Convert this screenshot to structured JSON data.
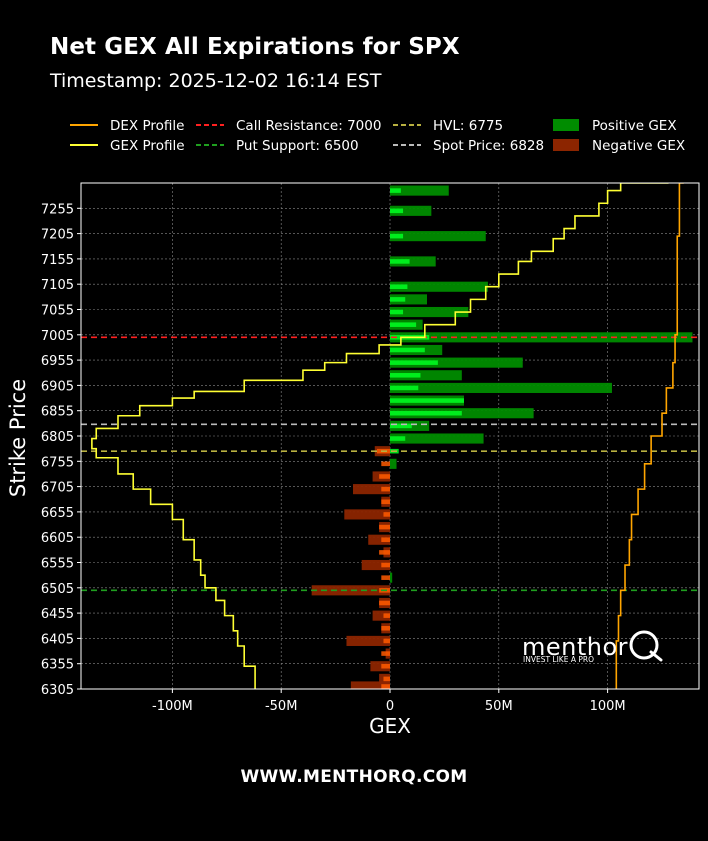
{
  "header": {
    "title": "Net GEX All Expirations for SPX",
    "subtitle": "Timestamp: 2025-12-02 16:14 EST"
  },
  "footer": {
    "text": "WWW.MENTHORQ.COM"
  },
  "watermark": {
    "brand": "menthor",
    "tagline": "INVEST LIKE A PRO"
  },
  "colors": {
    "background": "#000000",
    "dex": "#ffa500",
    "gex": "#ffff33",
    "call_resistance": "#ff2020",
    "put_support": "#1f9f1f",
    "hvl": "#b8b040",
    "spot": "#bbbbbb",
    "positive_expiry": "#00ff22",
    "positive_net": "#008c00",
    "negative_expiry": "#ff5a00",
    "negative_net": "#8c2500"
  },
  "legend": [
    {
      "label": "DEX Profile",
      "kind": "line",
      "style": "solid",
      "color": "#ffa500"
    },
    {
      "label": "GEX Profile",
      "kind": "line",
      "style": "solid",
      "color": "#ffff33"
    },
    {
      "label": "Call Resistance: 7000",
      "kind": "line",
      "style": "dashed",
      "color": "#ff2020"
    },
    {
      "label": "Put Support: 6500",
      "kind": "line",
      "style": "dashed",
      "color": "#1f9f1f"
    },
    {
      "label": "HVL: 6775",
      "kind": "line",
      "style": "dashed",
      "color": "#b8b040"
    },
    {
      "label": "Spot Price: 6828",
      "kind": "line",
      "style": "dashed",
      "color": "#bbbbbb"
    },
    {
      "label": "Positive GEX",
      "kind": "patch",
      "color": "#008c00"
    },
    {
      "label": "Negative GEX",
      "kind": "patch",
      "color": "#8c2500"
    }
  ],
  "chart_data": {
    "type": "bar",
    "orientation": "horizontal",
    "xlabel": "GEX",
    "ylabel": "Strike Price",
    "xlim": [
      -142,
      142
    ],
    "x_unit": "M",
    "ylim": [
      6305,
      7305
    ],
    "x_ticks": [
      -100,
      -50,
      0,
      50,
      100
    ],
    "x_tick_labels": [
      "-100M",
      "-50M",
      "0",
      "50M",
      "100M"
    ],
    "y_ticks": [
      6305,
      6355,
      6405,
      6455,
      6505,
      6555,
      6605,
      6655,
      6705,
      6755,
      6805,
      6855,
      6905,
      6955,
      7005,
      7055,
      7105,
      7155,
      7205,
      7255
    ],
    "grid": true,
    "levels": {
      "call_resistance": 7000,
      "put_support": 6500,
      "hvl": 6775,
      "spot_price": 6828
    },
    "net_gex_bars": [
      {
        "strike": 7290,
        "value": 27
      },
      {
        "strike": 7250,
        "value": 19
      },
      {
        "strike": 7200,
        "value": 44
      },
      {
        "strike": 7150,
        "value": 21
      },
      {
        "strike": 7100,
        "value": 45
      },
      {
        "strike": 7075,
        "value": 17
      },
      {
        "strike": 7050,
        "value": 36
      },
      {
        "strike": 7025,
        "value": 15
      },
      {
        "strike": 7000,
        "value": 139
      },
      {
        "strike": 6975,
        "value": 24
      },
      {
        "strike": 6950,
        "value": 61
      },
      {
        "strike": 6925,
        "value": 33
      },
      {
        "strike": 6900,
        "value": 102
      },
      {
        "strike": 6875,
        "value": 34
      },
      {
        "strike": 6850,
        "value": 66
      },
      {
        "strike": 6825,
        "value": 18
      },
      {
        "strike": 6800,
        "value": 43
      },
      {
        "strike": 6775,
        "value": -7
      },
      {
        "strike": 6750,
        "value": 3
      },
      {
        "strike": 6725,
        "value": -8
      },
      {
        "strike": 6700,
        "value": -17
      },
      {
        "strike": 6675,
        "value": -4
      },
      {
        "strike": 6650,
        "value": -21
      },
      {
        "strike": 6625,
        "value": -5
      },
      {
        "strike": 6600,
        "value": -10
      },
      {
        "strike": 6575,
        "value": -3
      },
      {
        "strike": 6550,
        "value": -13
      },
      {
        "strike": 6525,
        "value": 1
      },
      {
        "strike": 6500,
        "value": -36
      },
      {
        "strike": 6475,
        "value": -5
      },
      {
        "strike": 6450,
        "value": -8
      },
      {
        "strike": 6425,
        "value": -4
      },
      {
        "strike": 6400,
        "value": -20
      },
      {
        "strike": 6375,
        "value": -2
      },
      {
        "strike": 6350,
        "value": -9
      },
      {
        "strike": 6325,
        "value": -5
      },
      {
        "strike": 6310,
        "value": -18
      }
    ],
    "expiry_gex_bars": [
      {
        "strike": 7290,
        "value": 5
      },
      {
        "strike": 7250,
        "value": 6
      },
      {
        "strike": 7200,
        "value": 6
      },
      {
        "strike": 7150,
        "value": 9
      },
      {
        "strike": 7100,
        "value": 8
      },
      {
        "strike": 7075,
        "value": 7
      },
      {
        "strike": 7050,
        "value": 6
      },
      {
        "strike": 7025,
        "value": 12
      },
      {
        "strike": 7000,
        "value": 18
      },
      {
        "strike": 6975,
        "value": 16
      },
      {
        "strike": 6950,
        "value": 22
      },
      {
        "strike": 6925,
        "value": 14
      },
      {
        "strike": 6900,
        "value": 13
      },
      {
        "strike": 6875,
        "value": 34
      },
      {
        "strike": 6850,
        "value": 33
      },
      {
        "strike": 6825,
        "value": 10
      },
      {
        "strike": 6800,
        "value": 7
      },
      {
        "strike": 6775,
        "value": 4
      },
      {
        "strike": 6775,
        "value": -6
      },
      {
        "strike": 6750,
        "value": -4
      },
      {
        "strike": 6725,
        "value": -5
      },
      {
        "strike": 6700,
        "value": -4
      },
      {
        "strike": 6675,
        "value": -4
      },
      {
        "strike": 6650,
        "value": -3
      },
      {
        "strike": 6625,
        "value": -5
      },
      {
        "strike": 6600,
        "value": -4
      },
      {
        "strike": 6575,
        "value": -5
      },
      {
        "strike": 6550,
        "value": -4
      },
      {
        "strike": 6525,
        "value": -4
      },
      {
        "strike": 6500,
        "value": -5
      },
      {
        "strike": 6475,
        "value": -5
      },
      {
        "strike": 6450,
        "value": -3
      },
      {
        "strike": 6425,
        "value": -4
      },
      {
        "strike": 6400,
        "value": -3
      },
      {
        "strike": 6375,
        "value": -4
      },
      {
        "strike": 6350,
        "value": -4
      },
      {
        "strike": 6325,
        "value": -3
      },
      {
        "strike": 6310,
        "value": -4
      }
    ],
    "gex_profile": [
      {
        "strike": 7305,
        "gex": 128
      },
      {
        "strike": 7290,
        "gex": 106
      },
      {
        "strike": 7265,
        "gex": 100
      },
      {
        "strike": 7240,
        "gex": 96
      },
      {
        "strike": 7215,
        "gex": 85
      },
      {
        "strike": 7195,
        "gex": 80
      },
      {
        "strike": 7170,
        "gex": 75
      },
      {
        "strike": 7150,
        "gex": 65
      },
      {
        "strike": 7125,
        "gex": 59
      },
      {
        "strike": 7100,
        "gex": 50
      },
      {
        "strike": 7075,
        "gex": 44
      },
      {
        "strike": 7050,
        "gex": 37
      },
      {
        "strike": 7025,
        "gex": 30
      },
      {
        "strike": 7000,
        "gex": 16
      },
      {
        "strike": 6985,
        "gex": 5
      },
      {
        "strike": 6968,
        "gex": -5
      },
      {
        "strike": 6950,
        "gex": -20
      },
      {
        "strike": 6935,
        "gex": -30
      },
      {
        "strike": 6915,
        "gex": -40
      },
      {
        "strike": 6893,
        "gex": -67
      },
      {
        "strike": 6880,
        "gex": -90
      },
      {
        "strike": 6865,
        "gex": -100
      },
      {
        "strike": 6845,
        "gex": -115
      },
      {
        "strike": 6820,
        "gex": -125
      },
      {
        "strike": 6800,
        "gex": -135
      },
      {
        "strike": 6780,
        "gex": -137
      },
      {
        "strike": 6762,
        "gex": -135
      },
      {
        "strike": 6730,
        "gex": -125
      },
      {
        "strike": 6700,
        "gex": -118
      },
      {
        "strike": 6670,
        "gex": -110
      },
      {
        "strike": 6640,
        "gex": -100
      },
      {
        "strike": 6600,
        "gex": -95
      },
      {
        "strike": 6560,
        "gex": -90
      },
      {
        "strike": 6530,
        "gex": -87
      },
      {
        "strike": 6505,
        "gex": -85
      },
      {
        "strike": 6480,
        "gex": -80
      },
      {
        "strike": 6450,
        "gex": -76
      },
      {
        "strike": 6420,
        "gex": -72
      },
      {
        "strike": 6390,
        "gex": -70
      },
      {
        "strike": 6350,
        "gex": -67
      },
      {
        "strike": 6305,
        "gex": -62
      }
    ],
    "dex_profile": [
      {
        "strike": 7305,
        "dex": 135
      },
      {
        "strike": 7200,
        "dex": 133
      },
      {
        "strike": 7100,
        "dex": 132
      },
      {
        "strike": 7005,
        "dex": 132
      },
      {
        "strike": 6950,
        "dex": 131
      },
      {
        "strike": 6900,
        "dex": 130
      },
      {
        "strike": 6850,
        "dex": 127
      },
      {
        "strike": 6805,
        "dex": 125
      },
      {
        "strike": 6750,
        "dex": 120
      },
      {
        "strike": 6700,
        "dex": 117
      },
      {
        "strike": 6650,
        "dex": 114
      },
      {
        "strike": 6600,
        "dex": 111
      },
      {
        "strike": 6550,
        "dex": 110
      },
      {
        "strike": 6500,
        "dex": 108
      },
      {
        "strike": 6450,
        "dex": 106
      },
      {
        "strike": 6400,
        "dex": 105
      },
      {
        "strike": 6350,
        "dex": 104
      },
      {
        "strike": 6305,
        "dex": 104
      }
    ]
  }
}
